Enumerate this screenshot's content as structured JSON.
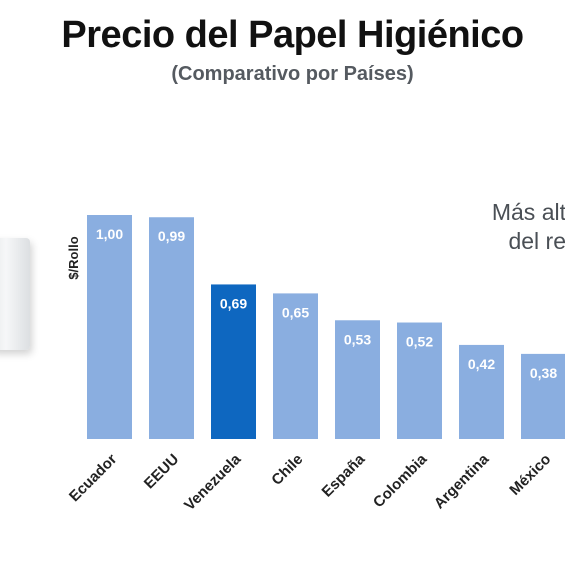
{
  "title": "Precio del Papel Higiénico",
  "subtitle": "(Comparativo por Países)",
  "callout": {
    "line1": "Más alt",
    "line2": "del re"
  },
  "chart_data": {
    "type": "bar",
    "ylabel": "$/Rollo",
    "categories": [
      "Ecuador",
      "EEUU",
      "Venezuela",
      "Chile",
      "España",
      "Colombia",
      "Argentina",
      "México"
    ],
    "values": [
      1.0,
      0.99,
      0.69,
      0.65,
      0.53,
      0.52,
      0.42,
      0.38
    ],
    "value_labels": [
      "1,00",
      "0,99",
      "0,69",
      "0,65",
      "0,53",
      "0,52",
      "0,42",
      "0,38"
    ],
    "highlight": "Venezuela",
    "ylim": [
      0,
      1.0
    ],
    "grid": false,
    "colors": {
      "bar": "#8aaee0",
      "highlight": "#0e67c0",
      "label": "#ffffff",
      "axis_text": "#222222"
    }
  }
}
